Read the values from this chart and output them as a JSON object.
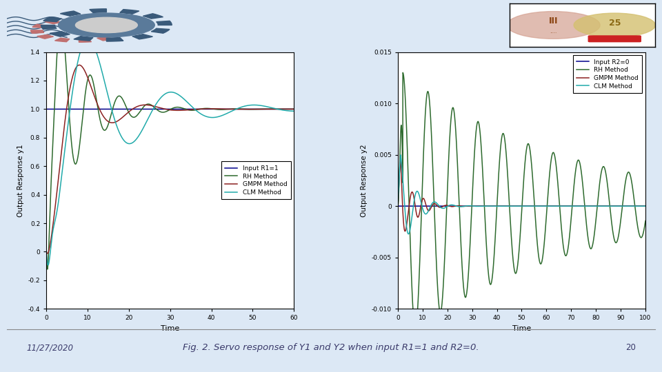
{
  "title": "Fig. 2. Servo response of Y1 and Y2 when input R1=1 and R2=0.",
  "date_text": "11/27/2020",
  "page_num": "20",
  "bg_color": "#cddaea",
  "slide_bg": "#dce8f5",
  "plot_bg": "#ffffff",
  "subplot1": {
    "ylabel": "Output Response y1",
    "xlabel": "Time",
    "xlim": [
      0,
      60
    ],
    "ylim": [
      -0.4,
      1.4
    ],
    "yticks": [
      -0.4,
      -0.2,
      0.0,
      0.2,
      0.4,
      0.6,
      0.8,
      1.0,
      1.2,
      1.4
    ],
    "xticks": [
      0,
      10,
      20,
      30,
      40,
      50,
      60
    ],
    "legend": [
      "Input R1=1",
      "RH Method",
      "GMPM Method",
      "CLM Method"
    ],
    "colors": [
      "#00008B",
      "#2d6a2d",
      "#8B2020",
      "#20AAAA"
    ]
  },
  "subplot2": {
    "ylabel": "Output Response y2",
    "xlabel": "Time",
    "xlim": [
      0,
      100
    ],
    "ylim": [
      -0.01,
      0.015
    ],
    "yticks": [
      -0.01,
      -0.005,
      0.0,
      0.005,
      0.01,
      0.015
    ],
    "xticks": [
      0,
      10,
      20,
      30,
      40,
      50,
      60,
      70,
      80,
      90,
      100
    ],
    "legend": [
      "Input R2=0",
      "RH Method",
      "GMPM Method",
      "CLM Method"
    ],
    "colors": [
      "#00008B",
      "#2d6a2d",
      "#8B2020",
      "#20AAAA"
    ]
  }
}
